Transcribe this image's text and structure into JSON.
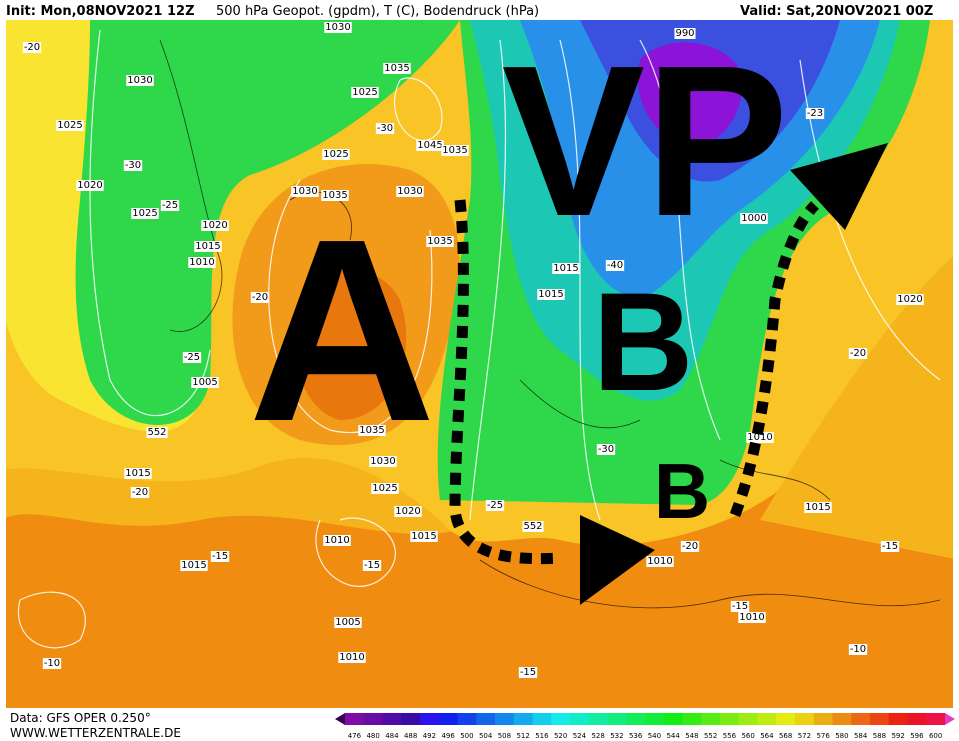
{
  "header": {
    "init": "Init: Mon,08NOV2021 12Z",
    "title": "500 hPa Geopot. (gpdm), T (C), Bodendruck (hPa)",
    "valid": "Valid: Sat,20NOV2021 00Z"
  },
  "annotations": [
    "VP",
    "A",
    "B",
    "B"
  ],
  "map_labels": [
    "1030",
    "1025",
    "1020",
    "-30",
    "-25",
    "1025",
    "1020",
    "1015",
    "1010",
    "-20",
    "-25",
    "1005",
    "552",
    "1015",
    "-20",
    "1035",
    "1025",
    "-30",
    "1045",
    "1035",
    "1025",
    "1030",
    "1035",
    "1030",
    "1035",
    "1035",
    "1030",
    "1025",
    "1020",
    "1015",
    "1010",
    "-15",
    "1015",
    "-15",
    "1005",
    "1010",
    "-10",
    "1015",
    "1015",
    "-40",
    "1000",
    "-23",
    "-30",
    "-25",
    "552",
    "-20",
    "1010",
    "1010",
    "1020",
    "-20",
    "1015",
    "-15",
    "-15",
    "1010",
    "-10",
    "-15",
    "-20",
    "1030",
    "990"
  ],
  "colorbar": {
    "labels": [
      476,
      480,
      484,
      488,
      492,
      496,
      500,
      504,
      508,
      512,
      516,
      520,
      524,
      528,
      532,
      536,
      540,
      544,
      548,
      552,
      556,
      560,
      564,
      568,
      572,
      576,
      580,
      584,
      588,
      592,
      596,
      600
    ]
  },
  "footer": {
    "data": "Data: GFS OPER 0.250°",
    "site": "WWW.WETTERZENTRALE.DE"
  }
}
